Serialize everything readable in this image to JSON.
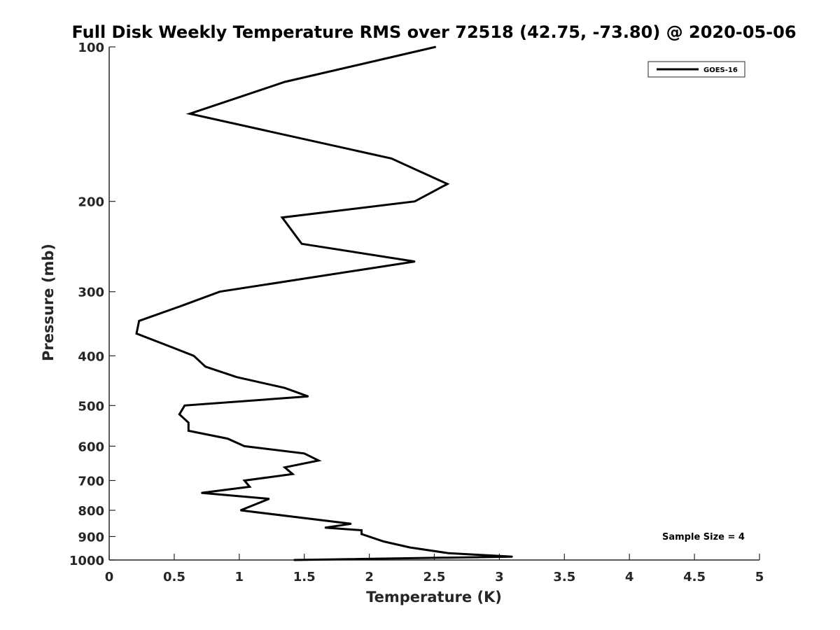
{
  "chart_data": {
    "type": "line",
    "title": "Full Disk Weekly Temperature RMS over 72518 (42.75, -73.80) @ 2020-05-06",
    "xlabel": "Temperature (K)",
    "ylabel": "Pressure (mb)",
    "xlim": [
      0,
      5
    ],
    "ylim": [
      100,
      1000
    ],
    "y_scale": "log",
    "y_reversed": true,
    "x_ticks": [
      "0",
      "0.5",
      "1",
      "1.5",
      "2",
      "2.5",
      "3",
      "3.5",
      "4",
      "4.5",
      "5"
    ],
    "y_ticks": [
      "100",
      "200",
      "300",
      "400",
      "500",
      "600",
      "700",
      "800",
      "900",
      "1000"
    ],
    "grid": false,
    "legend_position": "top-right",
    "series": [
      {
        "name": "GOES-16",
        "color": "#000000",
        "points": [
          [
            2.51,
            100
          ],
          [
            1.35,
            117
          ],
          [
            0.62,
            135
          ],
          [
            2.17,
            165
          ],
          [
            2.6,
            185
          ],
          [
            2.35,
            200
          ],
          [
            1.33,
            215
          ],
          [
            1.48,
            242
          ],
          [
            2.35,
            262
          ],
          [
            0.85,
            300
          ],
          [
            0.55,
            320
          ],
          [
            0.23,
            342
          ],
          [
            0.21,
            362
          ],
          [
            0.46,
            383
          ],
          [
            0.65,
            400
          ],
          [
            0.74,
            420
          ],
          [
            0.98,
            440
          ],
          [
            1.35,
            462
          ],
          [
            1.53,
            480
          ],
          [
            0.58,
            500
          ],
          [
            0.54,
            520
          ],
          [
            0.61,
            540
          ],
          [
            0.61,
            560
          ],
          [
            0.91,
            580
          ],
          [
            1.04,
            600
          ],
          [
            1.5,
            620
          ],
          [
            1.61,
            640
          ],
          [
            1.35,
            660
          ],
          [
            1.41,
            680
          ],
          [
            1.04,
            700
          ],
          [
            1.08,
            720
          ],
          [
            0.71,
            740
          ],
          [
            1.23,
            760
          ],
          [
            1.01,
            800
          ],
          [
            1.86,
            850
          ],
          [
            1.66,
            865
          ],
          [
            1.94,
            875
          ],
          [
            1.94,
            890
          ],
          [
            2.11,
            920
          ],
          [
            2.31,
            945
          ],
          [
            2.61,
            970
          ],
          [
            3.1,
            985
          ],
          [
            1.42,
            1000
          ]
        ]
      }
    ],
    "annotation": "Sample Size = 4"
  }
}
